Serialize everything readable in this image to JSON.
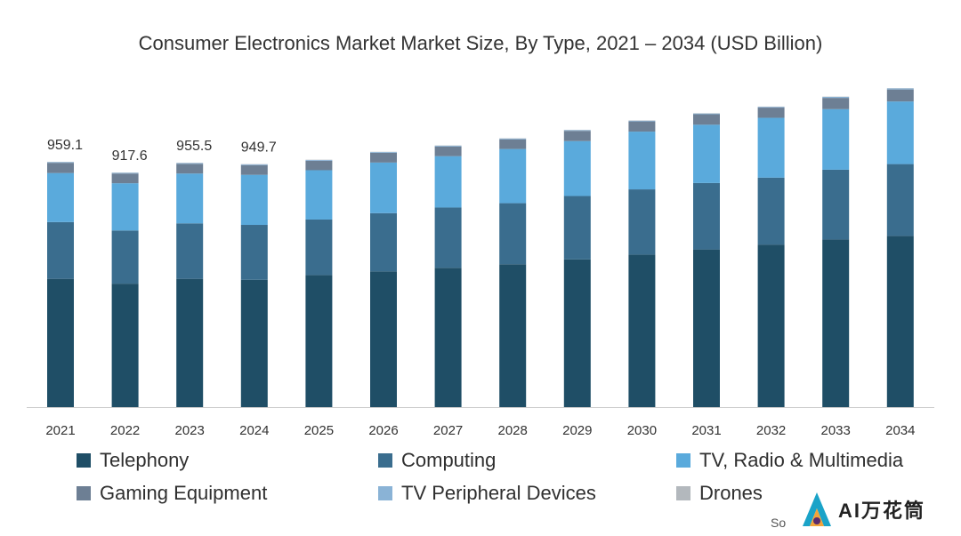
{
  "chart_data": {
    "type": "bar",
    "stacked": true,
    "title": "Consumer Electronics Market Market Size, By Type, 2021 – 2034 (USD Billion)",
    "categories": [
      "2021",
      "2022",
      "2023",
      "2024",
      "2025",
      "2026",
      "2027",
      "2028",
      "2029",
      "2030",
      "2031",
      "2032",
      "2033",
      "2034"
    ],
    "totals_labels": [
      "959.1",
      "917.6",
      "955.5",
      "949.7"
    ],
    "series": [
      {
        "name": "Telephony",
        "color": "#1f4e66",
        "values": [
          502,
          483,
          502,
          498,
          517,
          531,
          545,
          559,
          578,
          597,
          617,
          636,
          656,
          670
        ]
      },
      {
        "name": "Computing",
        "color": "#3a6d8e",
        "values": [
          222,
          208,
          217,
          215,
          217,
          228,
          236,
          239,
          248,
          255,
          260,
          262,
          273,
          281
        ]
      },
      {
        "name": "TV, Radio & Multimedia",
        "color": "#5aaadc",
        "values": [
          192,
          185,
          195,
          196,
          193,
          198,
          201,
          212,
          215,
          226,
          228,
          234,
          237,
          245
        ]
      },
      {
        "name": "Gaming Equipment",
        "color": "#6d7f94",
        "values": [
          40,
          38,
          38,
          38,
          37,
          38,
          38,
          38,
          40,
          40,
          41,
          40,
          44,
          47
        ]
      },
      {
        "name": "TV Peripheral Devices",
        "color": "#8ab3d6",
        "values": [
          3,
          3,
          3,
          3,
          3,
          3,
          3,
          3,
          3,
          3,
          3,
          3,
          4,
          4
        ]
      },
      {
        "name": "Drones",
        "color": "#b3b8bd",
        "values": [
          1,
          1,
          1,
          1,
          1,
          1,
          1,
          1,
          1,
          1,
          1,
          1,
          1,
          1
        ]
      }
    ],
    "ylim": [
      0,
      1280
    ],
    "grid": false,
    "legend_position": "bottom"
  },
  "source_fragment": "So",
  "watermark_text": "AI万花筒"
}
